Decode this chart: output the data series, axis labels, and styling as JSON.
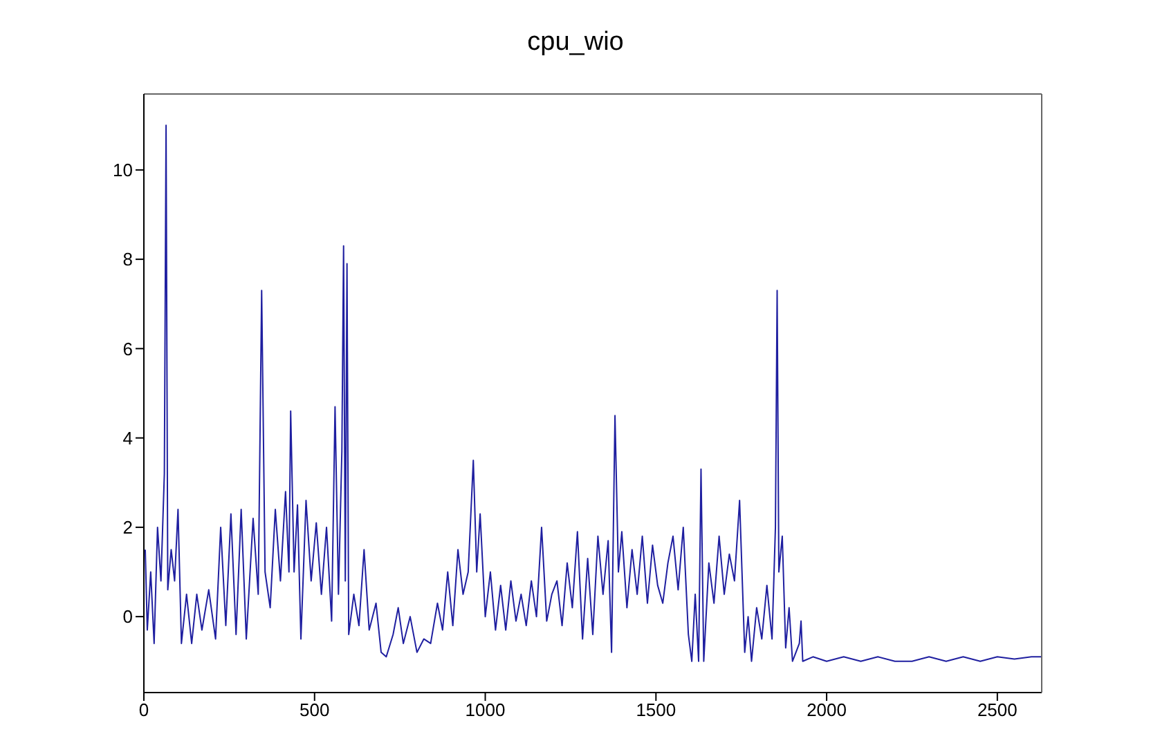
{
  "chart_data": {
    "type": "line",
    "title": "cpu_wio",
    "xlim": [
      0,
      2630
    ],
    "xticks": [
      0,
      500,
      1000,
      1500,
      2000,
      2500
    ],
    "ylim": [
      -1.7,
      11.7
    ],
    "yticks": [
      0,
      2,
      4,
      6,
      8,
      10
    ],
    "grid": false,
    "series": [
      {
        "color": "#1f1fa0",
        "x": [
          4,
          10,
          20,
          30,
          40,
          50,
          60,
          65,
          70,
          80,
          90,
          100,
          110,
          125,
          140,
          155,
          170,
          190,
          210,
          225,
          240,
          255,
          270,
          285,
          300,
          320,
          335,
          345,
          355,
          370,
          385,
          400,
          415,
          425,
          430,
          440,
          450,
          460,
          475,
          490,
          505,
          520,
          535,
          550,
          560,
          570,
          580,
          585,
          590,
          595,
          600,
          615,
          630,
          645,
          660,
          680,
          695,
          710,
          730,
          745,
          760,
          780,
          800,
          820,
          840,
          860,
          875,
          890,
          905,
          920,
          935,
          950,
          965,
          975,
          985,
          1000,
          1015,
          1030,
          1045,
          1060,
          1075,
          1090,
          1105,
          1120,
          1135,
          1150,
          1165,
          1180,
          1195,
          1210,
          1225,
          1240,
          1255,
          1270,
          1285,
          1300,
          1315,
          1330,
          1345,
          1360,
          1370,
          1380,
          1390,
          1400,
          1415,
          1430,
          1445,
          1460,
          1475,
          1490,
          1505,
          1520,
          1535,
          1550,
          1565,
          1580,
          1595,
          1605,
          1615,
          1625,
          1632,
          1640,
          1655,
          1670,
          1685,
          1700,
          1715,
          1730,
          1745,
          1760,
          1770,
          1780,
          1795,
          1810,
          1825,
          1840,
          1850,
          1855,
          1860,
          1870,
          1880,
          1890,
          1900,
          1910,
          1920,
          1925,
          1930,
          1960,
          2000,
          2050,
          2100,
          2150,
          2200,
          2250,
          2300,
          2350,
          2400,
          2450,
          2500,
          2550,
          2600,
          2630
        ],
        "values": [
          1.5,
          -0.3,
          1.0,
          -0.6,
          2.0,
          0.8,
          3.2,
          11.0,
          0.6,
          1.5,
          0.8,
          2.4,
          -0.6,
          0.5,
          -0.6,
          0.5,
          -0.3,
          0.6,
          -0.5,
          2.0,
          -0.2,
          2.3,
          -0.4,
          2.4,
          -0.5,
          2.2,
          0.5,
          7.3,
          1.0,
          0.2,
          2.4,
          0.8,
          2.8,
          1.0,
          4.6,
          1.0,
          2.5,
          -0.5,
          2.6,
          0.8,
          2.1,
          0.5,
          2.0,
          -0.1,
          4.7,
          0.5,
          3.7,
          8.3,
          0.8,
          7.9,
          -0.4,
          0.5,
          -0.2,
          1.5,
          -0.3,
          0.3,
          -0.8,
          -0.9,
          -0.4,
          0.2,
          -0.6,
          0.0,
          -0.8,
          -0.5,
          -0.6,
          0.3,
          -0.3,
          1.0,
          -0.2,
          1.5,
          0.5,
          1.0,
          3.5,
          1.0,
          2.3,
          0.0,
          1.0,
          -0.3,
          0.7,
          -0.3,
          0.8,
          -0.1,
          0.5,
          -0.2,
          0.8,
          0.0,
          2.0,
          -0.1,
          0.5,
          0.8,
          -0.2,
          1.2,
          0.2,
          1.9,
          -0.5,
          1.3,
          -0.4,
          1.8,
          0.5,
          1.7,
          -0.8,
          4.5,
          1.0,
          1.9,
          0.2,
          1.5,
          0.5,
          1.8,
          0.3,
          1.6,
          0.7,
          0.3,
          1.2,
          1.8,
          0.6,
          2.0,
          -0.4,
          -1.0,
          0.5,
          -1.0,
          3.3,
          -1.0,
          1.2,
          0.3,
          1.8,
          0.5,
          1.4,
          0.8,
          2.6,
          -0.8,
          0.0,
          -1.0,
          0.2,
          -0.5,
          0.7,
          -0.5,
          2.0,
          7.3,
          1.0,
          1.8,
          -0.7,
          0.2,
          -1.0,
          -0.8,
          -0.6,
          -0.1,
          -1.0,
          -0.9,
          -1.0,
          -0.9,
          -1.0,
          -0.9,
          -1.0,
          -1.0,
          -0.9,
          -1.0,
          -0.9,
          -1.0,
          -0.9,
          -0.95,
          -0.9,
          -0.9
        ]
      }
    ]
  }
}
